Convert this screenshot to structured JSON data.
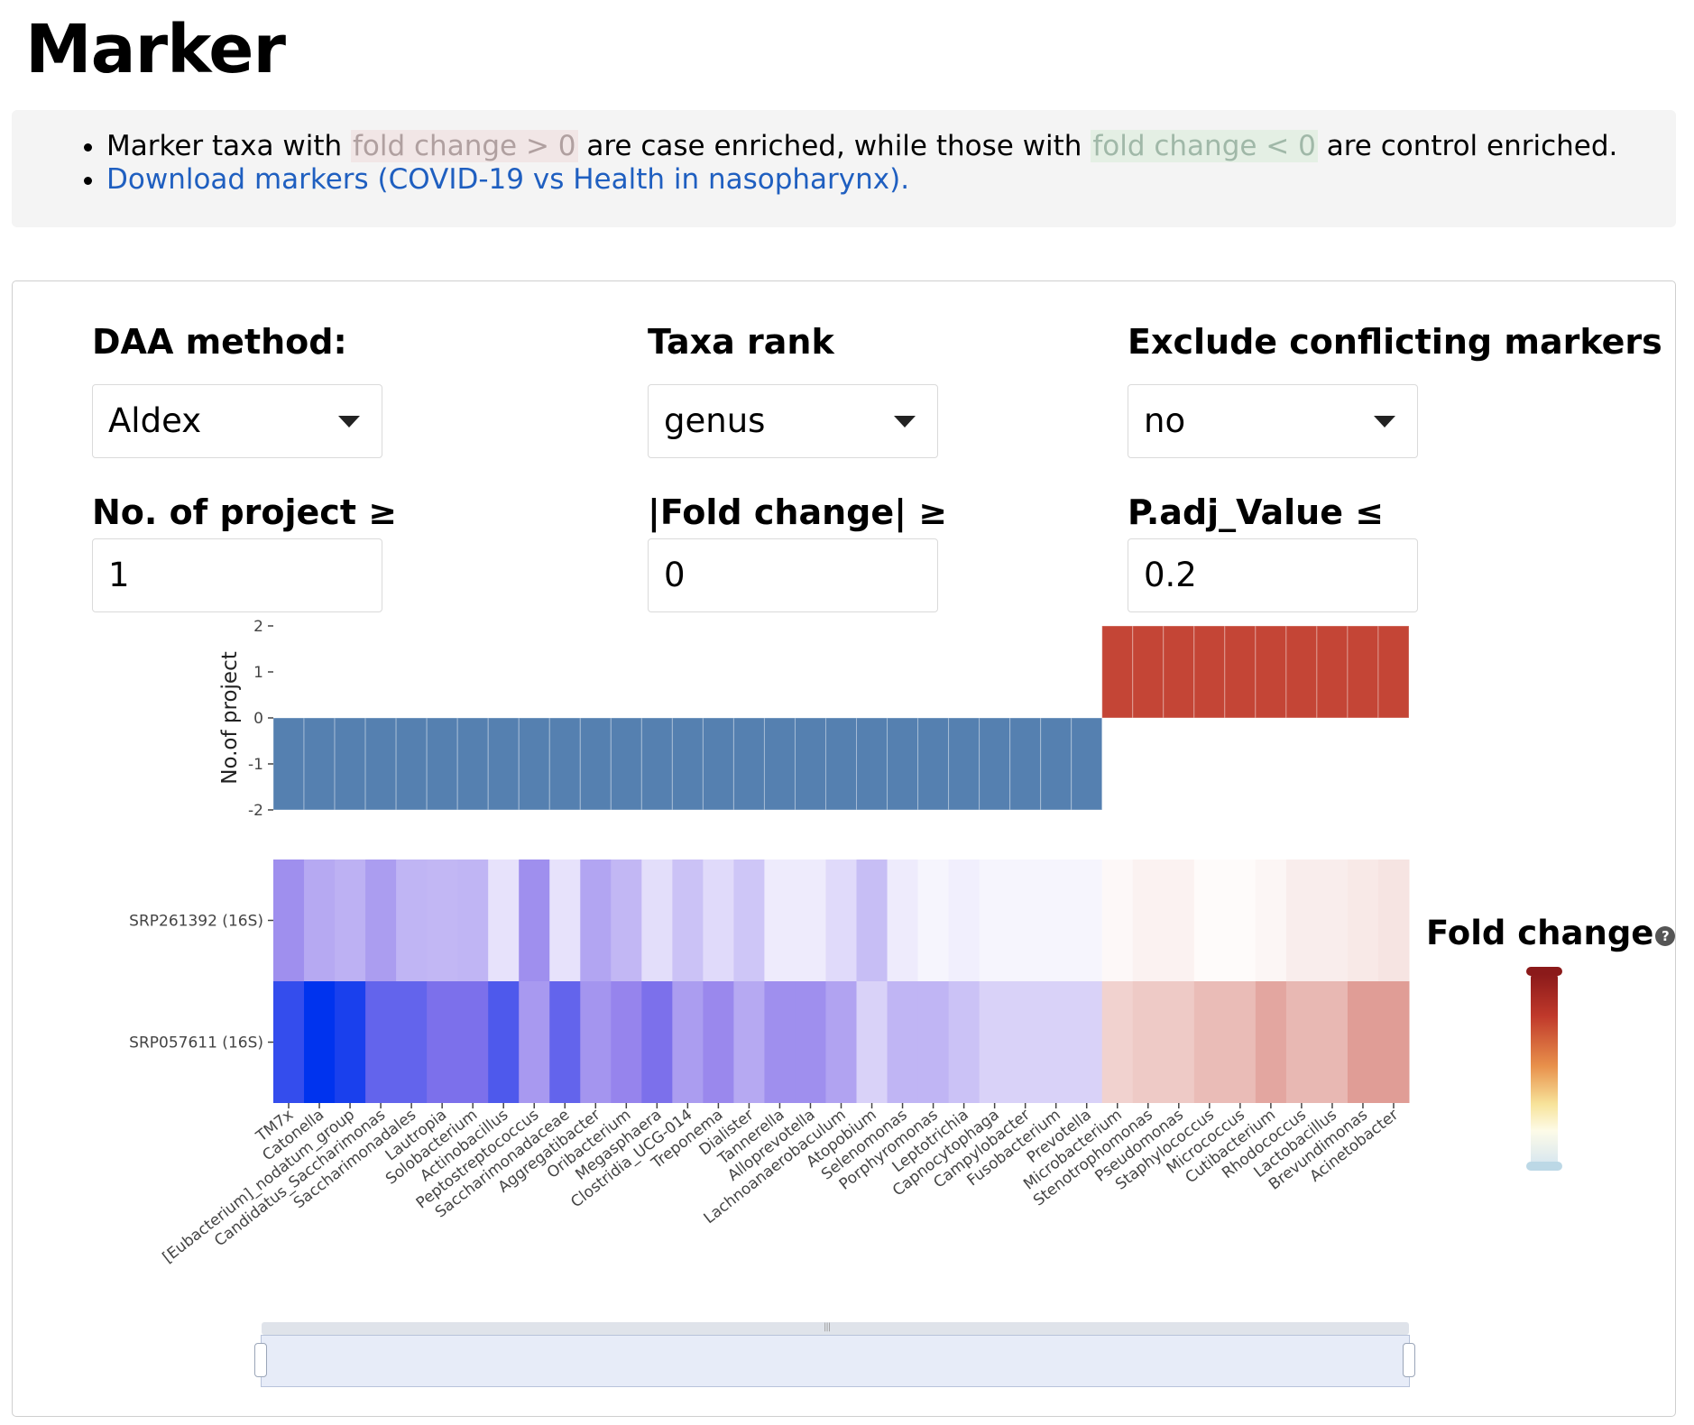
{
  "page": {
    "title": "Marker"
  },
  "info": {
    "line1_part1": "Marker taxa with",
    "line1_hl_pos": "fold change > 0",
    "line1_part2": "are case enriched, while those with",
    "line1_hl_neg": "fold change < 0",
    "line1_part3": "are control enriched.",
    "download_link": "Download markers (COVID-19 vs Health in nasopharynx)."
  },
  "controls": {
    "daa_method": {
      "label": "DAA method:",
      "value": "Aldex"
    },
    "taxa_rank": {
      "label": "Taxa rank",
      "value": "genus"
    },
    "exclude_conflicting": {
      "label": "Exclude conflicting markers",
      "value": "no"
    },
    "num_project": {
      "label": "No. of project ≥",
      "value": "1"
    },
    "fold_change": {
      "label": "|Fold change| ≥",
      "value": "0"
    },
    "padj": {
      "label": "P.adj_Value ≤",
      "value": "0.2"
    }
  },
  "legend": {
    "title": "Fold change",
    "help": "?",
    "colors": {
      "high": "#8b1a1a",
      "mid": "#f7e39a",
      "low": "#d6e6f0"
    }
  },
  "chart_data": [
    {
      "type": "bar",
      "ylabel": "No.of project",
      "ylim": [
        -2,
        2
      ],
      "yticks": [
        "2",
        "1",
        "0",
        "-1",
        "-2"
      ],
      "categories": [
        "TM7x",
        "Catonella",
        "[Eubacterium]_nodatum_group",
        "Candidatus_Saccharimonas",
        "Saccharimonadales",
        "Lautropia",
        "Solobacterium",
        "Actinobacillus",
        "Peptostreptococcus",
        "Saccharimonadaceae",
        "Aggregatibacter",
        "Oribacterium",
        "Megasphaera",
        "Clostridia_UCG-014",
        "Treponema",
        "Dialister",
        "Tannerella",
        "Alloprevotella",
        "Lachnoanaerobaculum",
        "Atopobium",
        "Selenomonas",
        "Porphyromonas",
        "Leptotrichia",
        "Capnocytophaga",
        "Campylobacter",
        "Fusobacterium",
        "Prevotella",
        "Microbacterium",
        "Stenotrophomonas",
        "Pseudomonas",
        "Staphylococcus",
        "Micrococcus",
        "Cutibacterium",
        "Rhodococcus",
        "Lactobacillus",
        "Brevundimonas",
        "Acinetobacter"
      ],
      "values": [
        -2,
        -2,
        -2,
        -2,
        -2,
        -2,
        -2,
        -2,
        -2,
        -2,
        -2,
        -2,
        -2,
        -2,
        -2,
        -2,
        -2,
        -2,
        -2,
        -2,
        -2,
        -2,
        -2,
        -2,
        -2,
        -2,
        -2,
        2,
        2,
        2,
        2,
        2,
        2,
        2,
        2,
        2,
        2
      ],
      "colors": {
        "positive": "#c44536",
        "negative": "#5580b0"
      }
    },
    {
      "type": "heatmap",
      "rows": [
        "SRP261392 (16S)",
        "SRP057611 (16S)"
      ],
      "x_ref": "same categories as bar chart",
      "values": [
        [
          -0.55,
          -0.42,
          -0.38,
          -0.48,
          -0.36,
          -0.35,
          -0.36,
          -0.14,
          -0.55,
          -0.14,
          -0.44,
          -0.35,
          -0.16,
          -0.3,
          -0.18,
          -0.28,
          -0.1,
          -0.1,
          -0.18,
          -0.32,
          -0.1,
          -0.05,
          -0.08,
          -0.05,
          -0.05,
          -0.05,
          -0.05,
          0.03,
          0.06,
          0.06,
          0.02,
          0.02,
          0.04,
          0.08,
          0.08,
          0.1,
          0.12
        ],
        [
          -1.0,
          -1.2,
          -1.1,
          -0.82,
          -0.82,
          -0.72,
          -0.72,
          -0.9,
          -0.5,
          -0.82,
          -0.52,
          -0.6,
          -0.72,
          -0.48,
          -0.58,
          -0.42,
          -0.55,
          -0.55,
          -0.45,
          -0.22,
          -0.36,
          -0.36,
          -0.3,
          -0.22,
          -0.22,
          -0.22,
          -0.22,
          0.2,
          0.24,
          0.24,
          0.3,
          0.3,
          0.4,
          0.32,
          0.32,
          0.44,
          0.44
        ]
      ],
      "colorscale": {
        "neg_strong": "#0033ee",
        "zero": "#ffffff",
        "pos_strong": "#c0392b"
      }
    }
  ]
}
